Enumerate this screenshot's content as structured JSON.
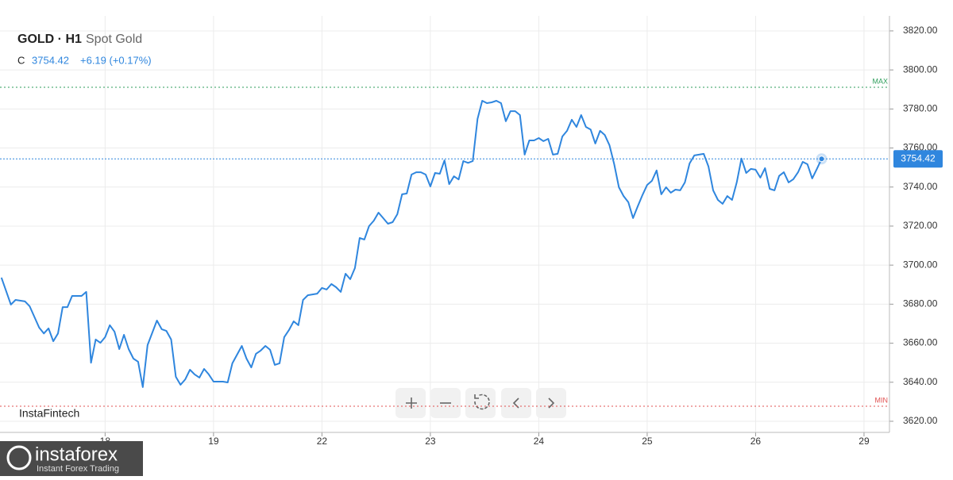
{
  "chart_data": {
    "type": "line",
    "symbol": "GOLD · H1",
    "instrument": "Spot Gold",
    "close_prefix": "C",
    "last": {
      "value": 3754.42,
      "label": "3754.42"
    },
    "change": "+6.19 (+0.17%)",
    "watermark": "InstaFintech",
    "brand": "instaforex",
    "brand_tagline": "Instant Forex Trading",
    "max_line": {
      "value": 3791.1,
      "label": "MAX"
    },
    "min_line": {
      "value": 3627.7,
      "label": "MIN"
    },
    "color": "#2f86de",
    "grid": true,
    "xlim": [
      -22.3,
      166.4
    ],
    "xticks": [
      {
        "value": 0,
        "label": "18"
      },
      {
        "value": 23,
        "label": "19"
      },
      {
        "value": 46,
        "label": "22"
      },
      {
        "value": 69,
        "label": "23"
      },
      {
        "value": 92,
        "label": "24"
      },
      {
        "value": 115,
        "label": "25"
      },
      {
        "value": 138,
        "label": "26"
      },
      {
        "value": 161,
        "label": "29"
      }
    ],
    "ylim": [
      3614.3,
      3827.7
    ],
    "yticks": [
      {
        "value": 3620,
        "label": "3620.00"
      },
      {
        "value": 3640,
        "label": "3640.00"
      },
      {
        "value": 3660,
        "label": "3660.00"
      },
      {
        "value": 3680,
        "label": "3680.00"
      },
      {
        "value": 3700,
        "label": "3700.00"
      },
      {
        "value": 3720,
        "label": "3720.00"
      },
      {
        "value": 3740,
        "label": "3740.00"
      },
      {
        "value": 3760,
        "label": "3760.00"
      },
      {
        "value": 3780,
        "label": "3780.00"
      },
      {
        "value": 3800,
        "label": "3800.00"
      },
      {
        "value": 3820,
        "label": "3820.00"
      }
    ],
    "x": [
      -22,
      -20,
      -19,
      -17,
      -16,
      -14,
      -13,
      -12,
      -11,
      -10,
      -9,
      -8,
      -7,
      -5,
      -4,
      -3,
      -2,
      -1,
      0,
      1,
      2,
      3,
      4,
      5,
      6,
      7,
      8,
      9,
      11,
      12,
      13,
      14,
      15,
      16,
      17,
      18,
      19,
      20,
      21,
      22,
      23,
      25,
      26,
      27,
      29,
      30,
      31,
      32,
      33,
      34,
      35,
      36,
      37,
      38,
      39,
      40,
      41,
      42,
      43,
      45,
      46,
      47,
      48,
      49,
      50,
      51,
      52,
      53,
      54,
      55,
      56,
      57,
      58,
      59,
      60,
      61,
      62,
      63,
      64,
      65,
      66,
      67,
      68,
      69,
      70,
      71,
      72,
      73,
      74,
      75,
      76,
      77,
      78,
      79,
      80,
      81,
      82,
      83,
      84,
      85,
      86,
      87,
      88,
      89,
      90,
      91,
      92,
      93,
      94,
      95,
      96,
      97,
      98,
      99,
      100,
      101,
      102,
      103,
      104,
      105,
      106,
      107,
      108,
      109,
      110,
      111,
      112,
      113,
      114,
      115,
      116,
      117,
      118,
      119,
      120,
      121,
      122,
      123,
      124,
      125,
      126,
      127,
      128,
      129,
      130,
      131,
      132,
      133,
      134,
      135,
      136,
      137,
      138,
      139,
      140,
      141,
      142,
      143,
      144,
      145,
      146,
      147,
      148,
      149,
      150,
      151,
      152
    ],
    "values": [
      3693.6,
      3679.8,
      3682.2,
      3681.4,
      3678.9,
      3668,
      3665,
      3667.6,
      3661,
      3665,
      3678.5,
      3678.5,
      3684.2,
      3684.2,
      3686.3,
      3650,
      3661.9,
      3660.2,
      3663.1,
      3669.2,
      3665.9,
      3657,
      3664.3,
      3657,
      3652.1,
      3650.5,
      3637.5,
      3659,
      3671.6,
      3667.2,
      3666.3,
      3661.9,
      3642.8,
      3638.7,
      3641.5,
      3646.4,
      3644,
      3642.4,
      3646.8,
      3644,
      3640.3,
      3640.3,
      3639.9,
      3649.7,
      3658.6,
      3652.1,
      3647.6,
      3654.6,
      3656.2,
      3658.6,
      3656.6,
      3648.9,
      3649.7,
      3663.1,
      3666.7,
      3671.2,
      3669.2,
      3682.2,
      3684.6,
      3685.4,
      3688.3,
      3687.5,
      3690.3,
      3688.7,
      3686.3,
      3695.6,
      3692.8,
      3698.5,
      3713.9,
      3713.1,
      3720,
      3722.8,
      3726.9,
      3724.1,
      3721.2,
      3722,
      3726.1,
      3736.3,
      3736.7,
      3746.4,
      3747.6,
      3747.6,
      3746.4,
      3740.3,
      3747.2,
      3746.8,
      3753.7,
      3741.5,
      3745.5,
      3743.9,
      3753.3,
      3752.4,
      3753.3,
      3774.9,
      3784.2,
      3783,
      3783.4,
      3784.2,
      3783,
      3773.7,
      3778.9,
      3778.9,
      3776.9,
      3756.6,
      3763.9,
      3763.9,
      3765.1,
      3763.5,
      3764.7,
      3756.6,
      3757,
      3765.9,
      3768.8,
      3774.5,
      3770.8,
      3776.9,
      3770.8,
      3769.5,
      3762.3,
      3768.8,
      3766.7,
      3761.5,
      3751.7,
      3739.9,
      3735.4,
      3732.2,
      3724.1,
      3730.2,
      3735.9,
      3741.1,
      3743.2,
      3748.5,
      3736.3,
      3739.9,
      3737.1,
      3738.7,
      3738.3,
      3742.4,
      3752.1,
      3756.2,
      3756.6,
      3757,
      3750.5,
      3738.3,
      3733.4,
      3731.4,
      3735.4,
      3733.4,
      3742.4,
      3754.6,
      3747.2,
      3749.3,
      3748.9,
      3744.8,
      3749.7,
      3739.1,
      3738.3,
      3745.7,
      3747.6,
      3742.4,
      3744,
      3747.6,
      3752.9,
      3751.7,
      3744.4,
      3749.3,
      3754.42
    ]
  }
}
